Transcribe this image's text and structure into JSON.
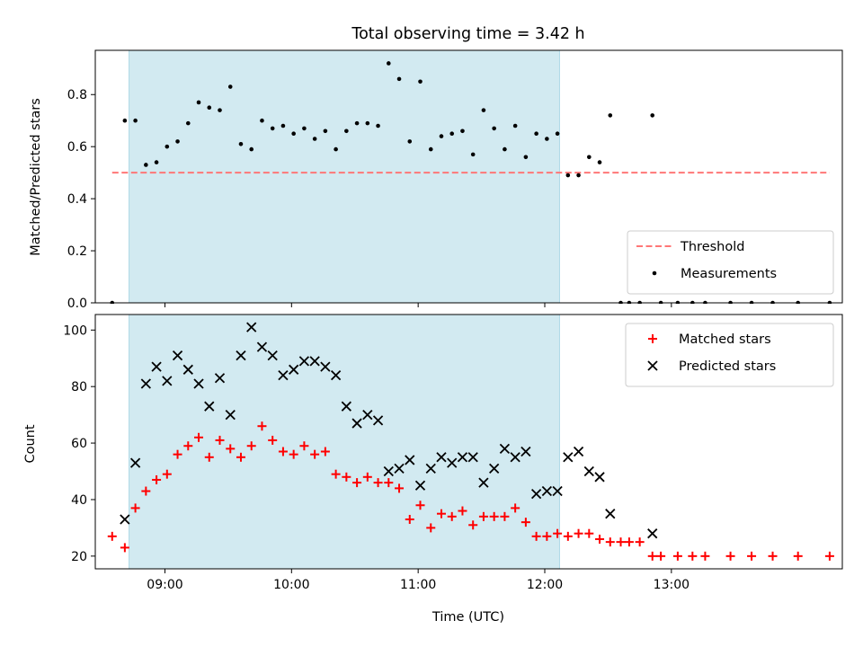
{
  "chart_data": {
    "title": "Total observing time = 3.42 h",
    "xlabel": "Time (UTC)",
    "xlim": [
      "08:27",
      "14:21"
    ],
    "xticks": [
      "09:00",
      "10:00",
      "11:00",
      "12:00",
      "13:00"
    ],
    "observing_window": [
      "08:43",
      "12:07"
    ],
    "colors": {
      "window": "#add8e6",
      "threshold": "#ff7777",
      "matched": "#ff0000",
      "predicted": "#000000",
      "measurements": "#000000"
    },
    "panels": [
      {
        "type": "scatter",
        "ylabel": "Matched/Predicted stars",
        "ylim": [
          0,
          0.97
        ],
        "yticks": [
          "0.0",
          "0.2",
          "0.4",
          "0.6",
          "0.8"
        ],
        "legend_position": "bottom-right",
        "threshold": {
          "name": "Threshold",
          "value": 0.5,
          "x_range": [
            "08:35",
            "14:15"
          ]
        },
        "series": [
          {
            "name": "Measurements",
            "marker": "dot",
            "points": [
              [
                "08:35",
                0.0
              ],
              [
                "08:41",
                0.7
              ],
              [
                "08:46",
                0.7
              ],
              [
                "08:51",
                0.53
              ],
              [
                "08:56",
                0.54
              ],
              [
                "09:01",
                0.6
              ],
              [
                "09:06",
                0.62
              ],
              [
                "09:11",
                0.69
              ],
              [
                "09:16",
                0.77
              ],
              [
                "09:21",
                0.75
              ],
              [
                "09:26",
                0.74
              ],
              [
                "09:31",
                0.83
              ],
              [
                "09:36",
                0.61
              ],
              [
                "09:41",
                0.59
              ],
              [
                "09:46",
                0.7
              ],
              [
                "09:51",
                0.67
              ],
              [
                "09:56",
                0.68
              ],
              [
                "10:01",
                0.65
              ],
              [
                "10:06",
                0.67
              ],
              [
                "10:11",
                0.63
              ],
              [
                "10:16",
                0.66
              ],
              [
                "10:21",
                0.59
              ],
              [
                "10:26",
                0.66
              ],
              [
                "10:31",
                0.69
              ],
              [
                "10:36",
                0.69
              ],
              [
                "10:41",
                0.68
              ],
              [
                "10:46",
                0.92
              ],
              [
                "10:51",
                0.86
              ],
              [
                "10:56",
                0.62
              ],
              [
                "11:01",
                0.85
              ],
              [
                "11:06",
                0.59
              ],
              [
                "11:11",
                0.64
              ],
              [
                "11:16",
                0.65
              ],
              [
                "11:21",
                0.66
              ],
              [
                "11:26",
                0.57
              ],
              [
                "11:31",
                0.74
              ],
              [
                "11:36",
                0.67
              ],
              [
                "11:41",
                0.59
              ],
              [
                "11:46",
                0.68
              ],
              [
                "11:51",
                0.56
              ],
              [
                "11:56",
                0.65
              ],
              [
                "12:01",
                0.63
              ],
              [
                "12:06",
                0.65
              ],
              [
                "12:11",
                0.49
              ],
              [
                "12:16",
                0.49
              ],
              [
                "12:21",
                0.56
              ],
              [
                "12:26",
                0.54
              ],
              [
                "12:31",
                0.72
              ],
              [
                "12:36",
                0.0
              ],
              [
                "12:40",
                0.0
              ],
              [
                "12:45",
                0.0
              ],
              [
                "12:51",
                0.72
              ],
              [
                "12:55",
                0.0
              ],
              [
                "13:03",
                0.0
              ],
              [
                "13:10",
                0.0
              ],
              [
                "13:16",
                0.0
              ],
              [
                "13:28",
                0.0
              ],
              [
                "13:38",
                0.0
              ],
              [
                "13:48",
                0.0
              ],
              [
                "14:00",
                0.0
              ],
              [
                "14:15",
                0.0
              ]
            ]
          }
        ]
      },
      {
        "type": "scatter",
        "ylabel": "Count",
        "ylim": [
          15.5,
          105.5
        ],
        "yticks": [
          "20",
          "40",
          "60",
          "80",
          "100"
        ],
        "legend_position": "top-right",
        "series": [
          {
            "name": "Matched stars",
            "marker": "plus",
            "points": [
              [
                "08:35",
                27
              ],
              [
                "08:41",
                23
              ],
              [
                "08:46",
                37
              ],
              [
                "08:51",
                43
              ],
              [
                "08:56",
                47
              ],
              [
                "09:01",
                49
              ],
              [
                "09:06",
                56
              ],
              [
                "09:11",
                59
              ],
              [
                "09:16",
                62
              ],
              [
                "09:21",
                55
              ],
              [
                "09:26",
                61
              ],
              [
                "09:31",
                58
              ],
              [
                "09:36",
                55
              ],
              [
                "09:41",
                59
              ],
              [
                "09:46",
                66
              ],
              [
                "09:51",
                61
              ],
              [
                "09:56",
                57
              ],
              [
                "10:01",
                56
              ],
              [
                "10:06",
                59
              ],
              [
                "10:11",
                56
              ],
              [
                "10:16",
                57
              ],
              [
                "10:21",
                49
              ],
              [
                "10:26",
                48
              ],
              [
                "10:31",
                46
              ],
              [
                "10:36",
                48
              ],
              [
                "10:41",
                46
              ],
              [
                "10:46",
                46
              ],
              [
                "10:51",
                44
              ],
              [
                "10:56",
                33
              ],
              [
                "11:01",
                38
              ],
              [
                "11:06",
                30
              ],
              [
                "11:11",
                35
              ],
              [
                "11:16",
                34
              ],
              [
                "11:21",
                36
              ],
              [
                "11:26",
                31
              ],
              [
                "11:31",
                34
              ],
              [
                "11:36",
                34
              ],
              [
                "11:41",
                34
              ],
              [
                "11:46",
                37
              ],
              [
                "11:51",
                32
              ],
              [
                "11:56",
                27
              ],
              [
                "12:01",
                27
              ],
              [
                "12:06",
                28
              ],
              [
                "12:11",
                27
              ],
              [
                "12:16",
                28
              ],
              [
                "12:21",
                28
              ],
              [
                "12:26",
                26
              ],
              [
                "12:31",
                25
              ],
              [
                "12:36",
                25
              ],
              [
                "12:40",
                25
              ],
              [
                "12:45",
                25
              ],
              [
                "12:51",
                20
              ],
              [
                "12:55",
                20
              ],
              [
                "13:03",
                20
              ],
              [
                "13:10",
                20
              ],
              [
                "13:16",
                20
              ],
              [
                "13:28",
                20
              ],
              [
                "13:38",
                20
              ],
              [
                "13:48",
                20
              ],
              [
                "14:00",
                20
              ],
              [
                "14:15",
                20
              ]
            ]
          },
          {
            "name": "Predicted stars",
            "marker": "x",
            "points": [
              [
                "08:41",
                33
              ],
              [
                "08:46",
                53
              ],
              [
                "08:51",
                81
              ],
              [
                "08:56",
                87
              ],
              [
                "09:01",
                82
              ],
              [
                "09:06",
                91
              ],
              [
                "09:11",
                86
              ],
              [
                "09:16",
                81
              ],
              [
                "09:21",
                73
              ],
              [
                "09:26",
                83
              ],
              [
                "09:31",
                70
              ],
              [
                "09:36",
                91
              ],
              [
                "09:41",
                101
              ],
              [
                "09:46",
                94
              ],
              [
                "09:51",
                91
              ],
              [
                "09:56",
                84
              ],
              [
                "10:01",
                86
              ],
              [
                "10:06",
                89
              ],
              [
                "10:11",
                89
              ],
              [
                "10:16",
                87
              ],
              [
                "10:21",
                84
              ],
              [
                "10:26",
                73
              ],
              [
                "10:31",
                67
              ],
              [
                "10:36",
                70
              ],
              [
                "10:41",
                68
              ],
              [
                "10:46",
                50
              ],
              [
                "10:51",
                51
              ],
              [
                "10:56",
                54
              ],
              [
                "11:01",
                45
              ],
              [
                "11:06",
                51
              ],
              [
                "11:11",
                55
              ],
              [
                "11:16",
                53
              ],
              [
                "11:21",
                55
              ],
              [
                "11:26",
                55
              ],
              [
                "11:31",
                46
              ],
              [
                "11:36",
                51
              ],
              [
                "11:41",
                58
              ],
              [
                "11:46",
                55
              ],
              [
                "11:51",
                57
              ],
              [
                "11:56",
                42
              ],
              [
                "12:01",
                43
              ],
              [
                "12:06",
                43
              ],
              [
                "12:11",
                55
              ],
              [
                "12:16",
                57
              ],
              [
                "12:21",
                50
              ],
              [
                "12:26",
                48
              ],
              [
                "12:31",
                35
              ],
              [
                "12:51",
                28
              ]
            ]
          }
        ]
      }
    ]
  }
}
